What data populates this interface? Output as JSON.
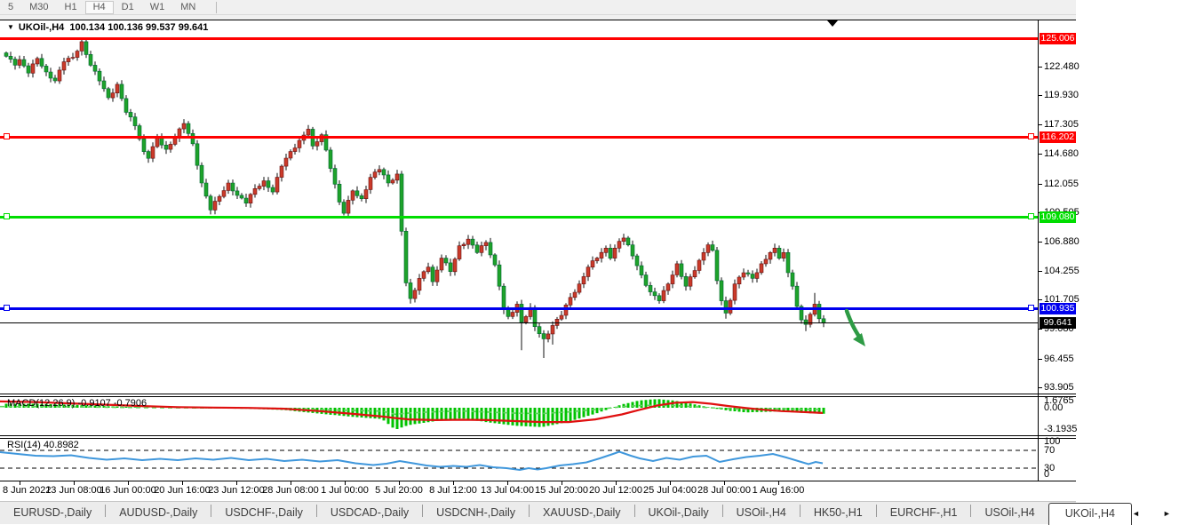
{
  "toolbar": {
    "timeframes": [
      {
        "label": "5",
        "active": false
      },
      {
        "label": "M30",
        "active": false
      },
      {
        "label": "H1",
        "active": false
      },
      {
        "label": "H4",
        "active": true
      },
      {
        "label": "D1",
        "active": false
      },
      {
        "label": "W1",
        "active": false
      },
      {
        "label": "MN",
        "active": false
      }
    ]
  },
  "chart_header": {
    "collapse_icon": "▼",
    "symbol_period": "UKOil-,H4",
    "ohlc_text": "100.134 100.136 99.537 99.641"
  },
  "chart_data": {
    "type": "candlestick",
    "symbol": "UKOil-",
    "timeframe": "H4",
    "current_ohlc": {
      "open": 100.134,
      "high": 100.136,
      "low": 99.537,
      "close": 99.641
    },
    "y_axis": {
      "ticks": [
        122.48,
        119.93,
        117.305,
        114.68,
        112.055,
        109.505,
        106.88,
        104.255,
        101.705,
        99.08,
        96.455,
        93.905
      ],
      "visible_range": [
        93.3,
        126.7
      ]
    },
    "x_axis": {
      "labels": [
        "8 Jun 2022",
        "13 Jun 08:00",
        "16 Jun 00:00",
        "20 Jun 16:00",
        "23 Jun 12:00",
        "28 Jun 08:00",
        "1 Jul 00:00",
        "5 Jul 20:00",
        "8 Jul 12:00",
        "13 Jul 04:00",
        "15 Jul 20:00",
        "20 Jul 12:00",
        "25 Jul 04:00",
        "28 Jul 00:00",
        "1 Aug 16:00"
      ],
      "centers": [
        22,
        83,
        144,
        205,
        266,
        327,
        388,
        449,
        510,
        571,
        632,
        693,
        754,
        815,
        876
      ]
    },
    "horizontal_lines": [
      {
        "price": 125.006,
        "label": "125.006",
        "color": "#ff0000",
        "thickness": 3,
        "handles": false
      },
      {
        "price": 116.202,
        "label": "116.202",
        "color": "#ff0000",
        "thickness": 3,
        "handles": true
      },
      {
        "price": 109.08,
        "label": "109.080",
        "color": "#00dd00",
        "thickness": 3,
        "handles": true
      },
      {
        "price": 100.935,
        "label": "100.935",
        "color": "#0000ee",
        "thickness": 3,
        "handles": true
      },
      {
        "price": 99.641,
        "label": "99.641",
        "color": "#000000",
        "thickness": 1,
        "handles": false
      }
    ],
    "candle_colors": {
      "bull": "#cb3a2a",
      "bear": "#1ea32a",
      "wick": "#111111"
    },
    "close_waypoints": [
      [
        0,
        123.4
      ],
      [
        2,
        122.6
      ],
      [
        3,
        123.1
      ],
      [
        5,
        121.9
      ],
      [
        7,
        123.2
      ],
      [
        9,
        122.0
      ],
      [
        11,
        121.2
      ],
      [
        13,
        122.9
      ],
      [
        15,
        123.3
      ],
      [
        17,
        124.7
      ],
      [
        19,
        122.6
      ],
      [
        21,
        121.2
      ],
      [
        23,
        119.7
      ],
      [
        25,
        120.9
      ],
      [
        27,
        118.4
      ],
      [
        29,
        117.2
      ],
      [
        31,
        114.9
      ],
      [
        32,
        114.3
      ],
      [
        34,
        116.2
      ],
      [
        36,
        115.1
      ],
      [
        38,
        116.1
      ],
      [
        40,
        117.4
      ],
      [
        42,
        115.6
      ],
      [
        44,
        112.1
      ],
      [
        46,
        109.7
      ],
      [
        48,
        110.9
      ],
      [
        50,
        112.1
      ],
      [
        52,
        111.0
      ],
      [
        54,
        110.3
      ],
      [
        56,
        111.6
      ],
      [
        58,
        112.3
      ],
      [
        60,
        111.3
      ],
      [
        62,
        113.6
      ],
      [
        64,
        114.9
      ],
      [
        66,
        115.9
      ],
      [
        68,
        116.9
      ],
      [
        69,
        115.4
      ],
      [
        71,
        116.4
      ],
      [
        73,
        113.4
      ],
      [
        75,
        110.4
      ],
      [
        76,
        109.4
      ],
      [
        78,
        111.4
      ],
      [
        80,
        110.7
      ],
      [
        82,
        112.6
      ],
      [
        84,
        113.3
      ],
      [
        86,
        112.1
      ],
      [
        88,
        112.9
      ],
      [
        89,
        107.8
      ],
      [
        90,
        103.2
      ],
      [
        91,
        101.8
      ],
      [
        93,
        103.6
      ],
      [
        95,
        104.6
      ],
      [
        96,
        103.3
      ],
      [
        98,
        105.4
      ],
      [
        100,
        104.2
      ],
      [
        102,
        106.5
      ],
      [
        104,
        107.1
      ],
      [
        106,
        105.9
      ],
      [
        108,
        106.8
      ],
      [
        110,
        104.8
      ],
      [
        111,
        102.9
      ],
      [
        112,
        100.8
      ],
      [
        113,
        100.2
      ],
      [
        115,
        101.3
      ],
      [
        116,
        99.7
      ],
      [
        118,
        101.0
      ],
      [
        119,
        99.3
      ],
      [
        121,
        98.2
      ],
      [
        123,
        99.4
      ],
      [
        125,
        100.3
      ],
      [
        127,
        101.9
      ],
      [
        129,
        103.1
      ],
      [
        131,
        104.6
      ],
      [
        133,
        105.4
      ],
      [
        135,
        106.3
      ],
      [
        136,
        105.4
      ],
      [
        138,
        106.9
      ],
      [
        139,
        107.2
      ],
      [
        141,
        105.6
      ],
      [
        143,
        103.9
      ],
      [
        145,
        102.4
      ],
      [
        147,
        101.6
      ],
      [
        149,
        103.1
      ],
      [
        151,
        104.9
      ],
      [
        153,
        102.9
      ],
      [
        155,
        104.3
      ],
      [
        157,
        105.9
      ],
      [
        158,
        106.6
      ],
      [
        159,
        106.1
      ],
      [
        160,
        103.4
      ],
      [
        161,
        101.6
      ],
      [
        162,
        100.5
      ],
      [
        164,
        103.1
      ],
      [
        166,
        104.1
      ],
      [
        168,
        103.6
      ],
      [
        170,
        104.9
      ],
      [
        172,
        105.9
      ],
      [
        173,
        106.3
      ],
      [
        174,
        105.4
      ],
      [
        175,
        105.9
      ],
      [
        176,
        104.1
      ],
      [
        177,
        102.9
      ],
      [
        178,
        101.1
      ],
      [
        179,
        99.9
      ],
      [
        180,
        99.5
      ],
      [
        181,
        100.4
      ],
      [
        182,
        101.3
      ],
      [
        183,
        100.0
      ],
      [
        184,
        99.641
      ]
    ],
    "wick_overrides": {
      "17": {
        "h": 124.95
      },
      "46": {
        "l": 109.3
      },
      "91": {
        "l": 101.35
      },
      "116": {
        "l": 97.2
      },
      "121": {
        "l": 96.5
      },
      "123": {
        "l": 97.7
      },
      "162": {
        "l": 100.0
      },
      "180": {
        "l": 98.9
      },
      "182": {
        "h": 102.3
      }
    },
    "indicators": {
      "macd": {
        "name": "MACD(12,26,9)",
        "values_text": "-0.9107 -0.7906",
        "macd_value": -0.9107,
        "signal_value": -0.7906,
        "axis_labels": [
          "1.6765",
          "0.00",
          "-3.1935"
        ],
        "histogram_color": "#00c300",
        "signal_color": "#e01010",
        "dashed_color": "#5cd55c",
        "points": [
          [
            0,
            0.6,
            0.95
          ],
          [
            40,
            0.6,
            0.85
          ],
          [
            80,
            0.45,
            0.65
          ],
          [
            120,
            0.25,
            0.45
          ],
          [
            160,
            0.05,
            0.25
          ],
          [
            200,
            -0.05,
            0.1
          ],
          [
            240,
            -0.1,
            0.02
          ],
          [
            280,
            -0.15,
            -0.03
          ],
          [
            320,
            -0.35,
            -0.15
          ],
          [
            360,
            -0.9,
            -0.5
          ],
          [
            400,
            -1.4,
            -0.95
          ],
          [
            430,
            -1.7,
            -1.3
          ],
          [
            445,
            -3.3,
            -1.55
          ],
          [
            460,
            -2.6,
            -1.75
          ],
          [
            490,
            -2.0,
            -1.85
          ],
          [
            520,
            -1.6,
            -1.8
          ],
          [
            550,
            -2.2,
            -1.85
          ],
          [
            580,
            -2.7,
            -2.0
          ],
          [
            610,
            -2.9,
            -2.15
          ],
          [
            640,
            -2.1,
            -2.15
          ],
          [
            670,
            -0.9,
            -1.75
          ],
          [
            700,
            0.5,
            -1.0
          ],
          [
            720,
            1.1,
            -0.3
          ],
          [
            740,
            1.3,
            0.35
          ],
          [
            760,
            1.05,
            0.75
          ],
          [
            780,
            0.55,
            0.85
          ],
          [
            800,
            0.0,
            0.6
          ],
          [
            820,
            -0.45,
            0.25
          ],
          [
            840,
            -0.7,
            -0.05
          ],
          [
            860,
            -0.62,
            -0.3
          ],
          [
            880,
            -0.55,
            -0.5
          ],
          [
            900,
            -0.75,
            -0.62
          ],
          [
            926,
            -0.91,
            -0.79
          ]
        ]
      },
      "rsi": {
        "name": "RSI(14)",
        "value_text": "40.8982",
        "value": 40.8982,
        "axis_labels": [
          "100",
          "70",
          "30",
          "0"
        ],
        "levels": [
          70,
          30
        ],
        "line_color": "#3f97dc",
        "points": [
          [
            0,
            66
          ],
          [
            20,
            62
          ],
          [
            40,
            58
          ],
          [
            60,
            57
          ],
          [
            80,
            59
          ],
          [
            100,
            53
          ],
          [
            120,
            49
          ],
          [
            140,
            52
          ],
          [
            160,
            48
          ],
          [
            180,
            51
          ],
          [
            200,
            48
          ],
          [
            220,
            52
          ],
          [
            240,
            49
          ],
          [
            260,
            53
          ],
          [
            280,
            48
          ],
          [
            300,
            51
          ],
          [
            320,
            46
          ],
          [
            340,
            49
          ],
          [
            360,
            45
          ],
          [
            380,
            48
          ],
          [
            400,
            41
          ],
          [
            420,
            37
          ],
          [
            435,
            40
          ],
          [
            450,
            46
          ],
          [
            465,
            41
          ],
          [
            480,
            36
          ],
          [
            495,
            33
          ],
          [
            510,
            35
          ],
          [
            525,
            33
          ],
          [
            540,
            37
          ],
          [
            555,
            32
          ],
          [
            570,
            30
          ],
          [
            585,
            26
          ],
          [
            595,
            30
          ],
          [
            605,
            27
          ],
          [
            615,
            30
          ],
          [
            630,
            36
          ],
          [
            645,
            39
          ],
          [
            660,
            43
          ],
          [
            675,
            52
          ],
          [
            690,
            62
          ],
          [
            697,
            67
          ],
          [
            710,
            58
          ],
          [
            720,
            52
          ],
          [
            735,
            46
          ],
          [
            750,
            53
          ],
          [
            765,
            49
          ],
          [
            780,
            56
          ],
          [
            795,
            58
          ],
          [
            810,
            44
          ],
          [
            825,
            50
          ],
          [
            840,
            55
          ],
          [
            855,
            58
          ],
          [
            870,
            62
          ],
          [
            885,
            54
          ],
          [
            900,
            45
          ],
          [
            910,
            39
          ],
          [
            918,
            44
          ],
          [
            926,
            41
          ]
        ]
      }
    },
    "annotation_arrow": {
      "type": "arrow-down",
      "color": "#2e9b45"
    }
  },
  "tabs": {
    "items": [
      {
        "label": "EURUSD-,Daily",
        "active": false
      },
      {
        "label": "AUDUSD-,Daily",
        "active": false
      },
      {
        "label": "USDCHF-,Daily",
        "active": false
      },
      {
        "label": "USDCAD-,Daily",
        "active": false
      },
      {
        "label": "USDCNH-,Daily",
        "active": false
      },
      {
        "label": "XAUUSD-,Daily",
        "active": false
      },
      {
        "label": "UKOil-,Daily",
        "active": false
      },
      {
        "label": "USOil-,H4",
        "active": false
      },
      {
        "label": "HK50-,H1",
        "active": false
      },
      {
        "label": "EURCHF-,H1",
        "active": false
      },
      {
        "label": "USOil-,H4",
        "active": false
      },
      {
        "label": "UKOil-,H4",
        "active": true
      }
    ],
    "scroll_left_icon": "◄",
    "scroll_right_icon": "►"
  }
}
